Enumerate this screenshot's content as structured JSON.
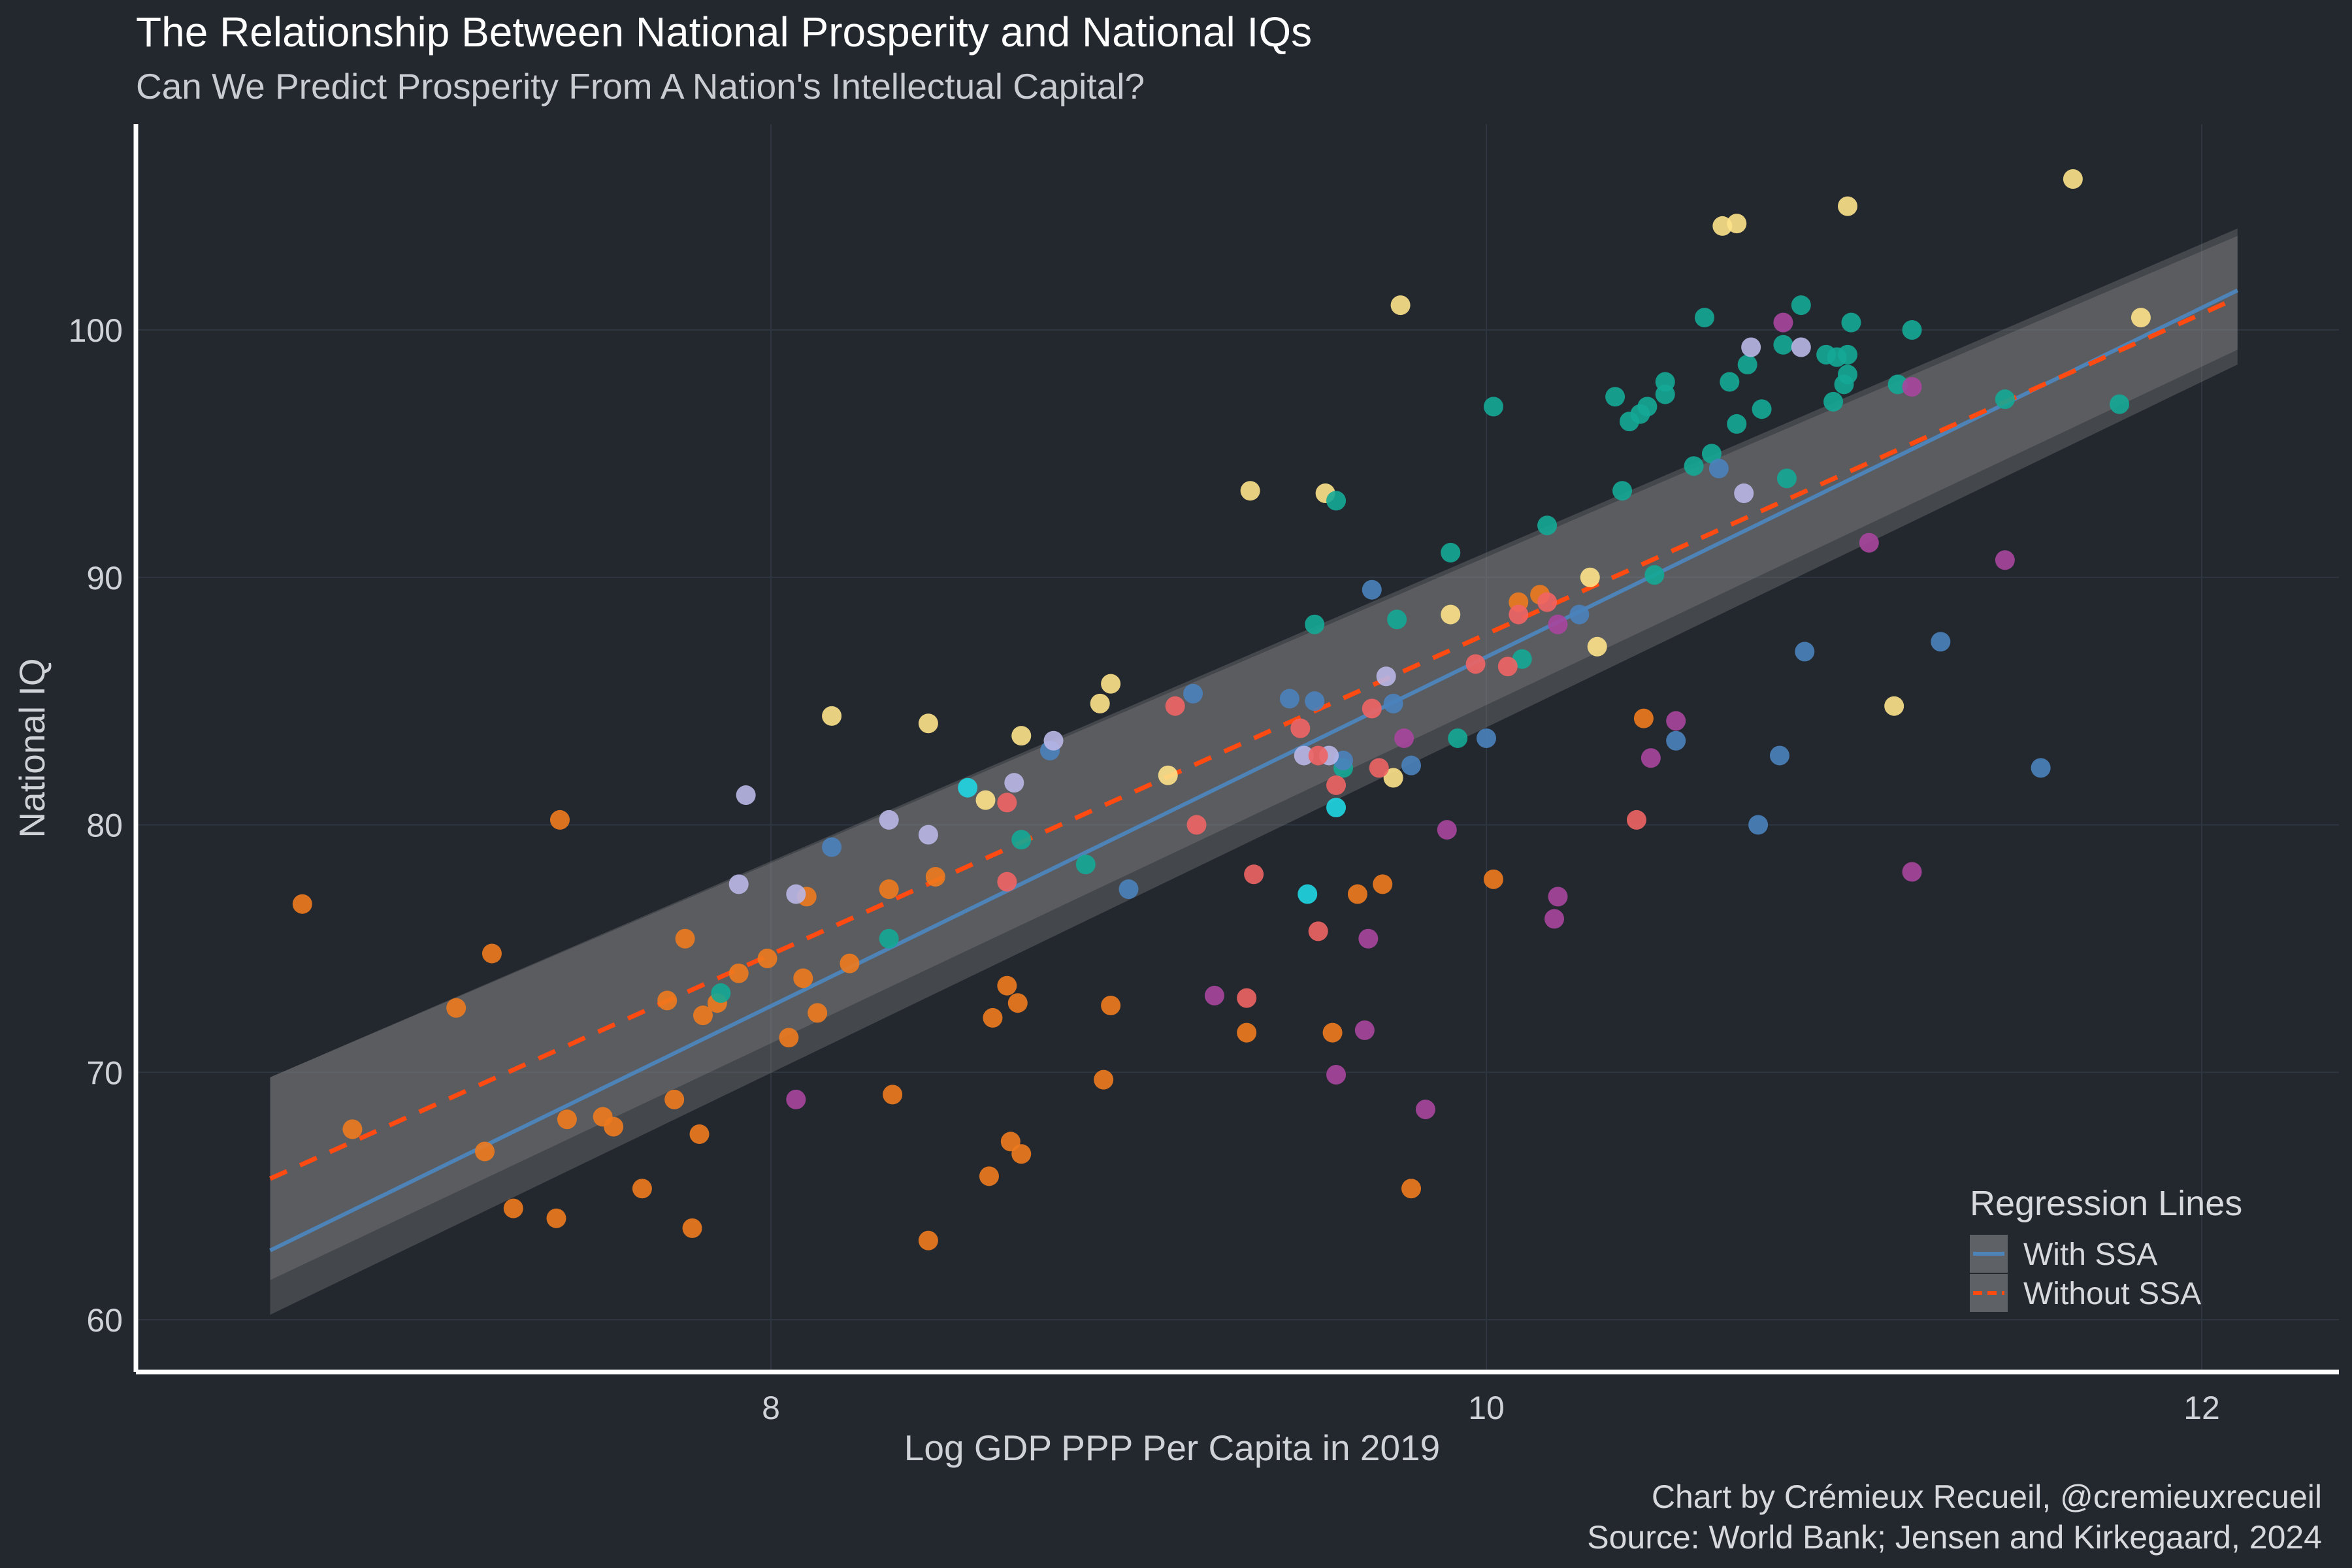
{
  "header": {
    "title": "The Relationship Between National Prosperity and National IQs",
    "subtitle": "Can We Predict Prosperity From A Nation's Intellectual Capital?"
  },
  "caption": {
    "line1": "Chart by Crémieux Recueil, @cremieuxrecueil",
    "line2": "Source: World Bank; Jensen and Kirkegaard, 2024"
  },
  "chart_data": {
    "type": "scatter",
    "title": "The Relationship Between National Prosperity and National IQs",
    "subtitle": "Can We Predict Prosperity From A Nation's Intellectual Capital?",
    "xlabel": "Log GDP PPP Per Capita in 2019",
    "ylabel": "National IQ",
    "xlim": [
      6.3,
      12.4
    ],
    "ylim": [
      58,
      108
    ],
    "xticks": [
      8,
      10,
      12
    ],
    "yticks": [
      60,
      70,
      80,
      90,
      100
    ],
    "grid": true,
    "legend": {
      "title": "Regression Lines",
      "position": "bottom-right",
      "entries": [
        {
          "label": "With SSA",
          "color": "#4e83b8",
          "style": "solid"
        },
        {
          "label": "Without SSA",
          "color": "#ff4a12",
          "style": "dashed"
        }
      ]
    },
    "regression_lines": [
      {
        "name": "With SSA",
        "color": "#4e83b8",
        "dash": false,
        "x": [
          6.6,
          12.1
        ],
        "y": [
          62.8,
          101.6
        ],
        "ci_lower": [
          60.2,
          98.6
        ],
        "ci_upper": [
          69.8,
          104.1
        ]
      },
      {
        "name": "Without SSA",
        "color": "#ff4a12",
        "dash": true,
        "x": [
          6.6,
          12.1
        ],
        "y": [
          65.7,
          101.3
        ],
        "ci_lower": [
          61.6,
          99.2
        ],
        "ci_upper": [
          69.8,
          103.8
        ]
      }
    ],
    "colors": {
      "orange": "#ee7a1e",
      "yellow": "#fde28a",
      "teal": "#14a896",
      "purple": "#a9459e",
      "blue": "#4a82bd",
      "lavender": "#b9b7e7",
      "red": "#ef6464",
      "cyan": "#1fd6e3"
    },
    "points": [
      {
        "x": 6.69,
        "y": 76.8,
        "c": "orange"
      },
      {
        "x": 6.83,
        "y": 67.7,
        "c": "orange"
      },
      {
        "x": 7.12,
        "y": 72.6,
        "c": "orange"
      },
      {
        "x": 7.22,
        "y": 74.8,
        "c": "orange"
      },
      {
        "x": 7.2,
        "y": 66.8,
        "c": "orange"
      },
      {
        "x": 7.28,
        "y": 64.5,
        "c": "orange"
      },
      {
        "x": 7.41,
        "y": 80.2,
        "c": "orange"
      },
      {
        "x": 7.4,
        "y": 64.1,
        "c": "orange"
      },
      {
        "x": 7.43,
        "y": 68.1,
        "c": "orange"
      },
      {
        "x": 7.53,
        "y": 68.2,
        "c": "orange"
      },
      {
        "x": 7.56,
        "y": 67.8,
        "c": "orange"
      },
      {
        "x": 7.64,
        "y": 65.3,
        "c": "orange"
      },
      {
        "x": 7.71,
        "y": 72.9,
        "c": "orange"
      },
      {
        "x": 7.73,
        "y": 68.9,
        "c": "orange"
      },
      {
        "x": 7.76,
        "y": 75.4,
        "c": "orange"
      },
      {
        "x": 7.78,
        "y": 63.7,
        "c": "orange"
      },
      {
        "x": 7.81,
        "y": 72.3,
        "c": "orange"
      },
      {
        "x": 7.8,
        "y": 67.5,
        "c": "orange"
      },
      {
        "x": 7.85,
        "y": 72.8,
        "c": "orange"
      },
      {
        "x": 7.91,
        "y": 74.0,
        "c": "orange"
      },
      {
        "x": 7.99,
        "y": 74.6,
        "c": "orange"
      },
      {
        "x": 8.05,
        "y": 71.4,
        "c": "orange"
      },
      {
        "x": 8.09,
        "y": 73.8,
        "c": "orange"
      },
      {
        "x": 8.1,
        "y": 77.1,
        "c": "orange"
      },
      {
        "x": 8.13,
        "y": 72.4,
        "c": "orange"
      },
      {
        "x": 8.22,
        "y": 74.4,
        "c": "orange"
      },
      {
        "x": 8.33,
        "y": 77.4,
        "c": "orange"
      },
      {
        "x": 8.34,
        "y": 69.1,
        "c": "orange"
      },
      {
        "x": 8.44,
        "y": 63.2,
        "c": "orange"
      },
      {
        "x": 8.46,
        "y": 77.9,
        "c": "orange"
      },
      {
        "x": 8.61,
        "y": 65.8,
        "c": "orange"
      },
      {
        "x": 8.62,
        "y": 72.2,
        "c": "orange"
      },
      {
        "x": 8.66,
        "y": 73.5,
        "c": "orange"
      },
      {
        "x": 8.67,
        "y": 67.2,
        "c": "orange"
      },
      {
        "x": 8.69,
        "y": 72.8,
        "c": "orange"
      },
      {
        "x": 8.7,
        "y": 66.7,
        "c": "orange"
      },
      {
        "x": 8.93,
        "y": 69.7,
        "c": "orange"
      },
      {
        "x": 8.95,
        "y": 72.7,
        "c": "orange"
      },
      {
        "x": 9.33,
        "y": 71.6,
        "c": "orange"
      },
      {
        "x": 9.57,
        "y": 71.6,
        "c": "orange"
      },
      {
        "x": 9.64,
        "y": 77.2,
        "c": "orange"
      },
      {
        "x": 9.71,
        "y": 77.6,
        "c": "orange"
      },
      {
        "x": 9.79,
        "y": 65.3,
        "c": "orange"
      },
      {
        "x": 10.02,
        "y": 77.8,
        "c": "orange"
      },
      {
        "x": 10.09,
        "y": 89.0,
        "c": "orange"
      },
      {
        "x": 10.15,
        "y": 89.3,
        "c": "orange"
      },
      {
        "x": 10.44,
        "y": 84.3,
        "c": "orange"
      },
      {
        "x": 8.17,
        "y": 84.4,
        "c": "yellow"
      },
      {
        "x": 8.44,
        "y": 84.1,
        "c": "yellow"
      },
      {
        "x": 8.6,
        "y": 81.0,
        "c": "yellow"
      },
      {
        "x": 8.7,
        "y": 83.6,
        "c": "yellow"
      },
      {
        "x": 8.92,
        "y": 84.9,
        "c": "yellow"
      },
      {
        "x": 8.95,
        "y": 85.7,
        "c": "yellow"
      },
      {
        "x": 9.11,
        "y": 82.0,
        "c": "yellow"
      },
      {
        "x": 9.34,
        "y": 93.5,
        "c": "yellow"
      },
      {
        "x": 9.55,
        "y": 93.4,
        "c": "yellow"
      },
      {
        "x": 9.74,
        "y": 81.9,
        "c": "yellow"
      },
      {
        "x": 9.76,
        "y": 101.0,
        "c": "yellow"
      },
      {
        "x": 9.9,
        "y": 88.5,
        "c": "yellow"
      },
      {
        "x": 10.29,
        "y": 90.0,
        "c": "yellow"
      },
      {
        "x": 10.31,
        "y": 87.2,
        "c": "yellow"
      },
      {
        "x": 10.66,
        "y": 104.2,
        "c": "yellow"
      },
      {
        "x": 10.7,
        "y": 104.3,
        "c": "yellow"
      },
      {
        "x": 11.01,
        "y": 105.0,
        "c": "yellow"
      },
      {
        "x": 11.14,
        "y": 84.8,
        "c": "yellow"
      },
      {
        "x": 11.64,
        "y": 106.1,
        "c": "yellow"
      },
      {
        "x": 11.83,
        "y": 100.5,
        "c": "yellow"
      },
      {
        "x": 7.86,
        "y": 73.2,
        "c": "teal"
      },
      {
        "x": 8.33,
        "y": 75.4,
        "c": "teal"
      },
      {
        "x": 8.7,
        "y": 79.4,
        "c": "teal"
      },
      {
        "x": 8.88,
        "y": 78.4,
        "c": "teal"
      },
      {
        "x": 9.52,
        "y": 88.1,
        "c": "teal"
      },
      {
        "x": 9.58,
        "y": 93.1,
        "c": "teal"
      },
      {
        "x": 9.6,
        "y": 82.3,
        "c": "teal"
      },
      {
        "x": 9.75,
        "y": 88.3,
        "c": "teal"
      },
      {
        "x": 9.9,
        "y": 91.0,
        "c": "teal"
      },
      {
        "x": 9.92,
        "y": 83.5,
        "c": "teal"
      },
      {
        "x": 10.02,
        "y": 96.9,
        "c": "teal"
      },
      {
        "x": 10.1,
        "y": 86.7,
        "c": "teal"
      },
      {
        "x": 10.17,
        "y": 92.1,
        "c": "teal"
      },
      {
        "x": 10.36,
        "y": 97.3,
        "c": "teal"
      },
      {
        "x": 10.38,
        "y": 93.5,
        "c": "teal"
      },
      {
        "x": 10.4,
        "y": 96.3,
        "c": "teal"
      },
      {
        "x": 10.43,
        "y": 96.6,
        "c": "teal"
      },
      {
        "x": 10.45,
        "y": 96.9,
        "c": "teal"
      },
      {
        "x": 10.47,
        "y": 90.1,
        "c": "teal"
      },
      {
        "x": 10.5,
        "y": 97.4,
        "c": "teal"
      },
      {
        "x": 10.5,
        "y": 97.9,
        "c": "teal"
      },
      {
        "x": 10.58,
        "y": 94.5,
        "c": "teal"
      },
      {
        "x": 10.61,
        "y": 100.5,
        "c": "teal"
      },
      {
        "x": 10.63,
        "y": 95.0,
        "c": "teal"
      },
      {
        "x": 10.68,
        "y": 97.9,
        "c": "teal"
      },
      {
        "x": 10.7,
        "y": 96.2,
        "c": "teal"
      },
      {
        "x": 10.73,
        "y": 98.6,
        "c": "teal"
      },
      {
        "x": 10.77,
        "y": 96.8,
        "c": "teal"
      },
      {
        "x": 10.83,
        "y": 99.4,
        "c": "teal"
      },
      {
        "x": 10.84,
        "y": 94.0,
        "c": "teal"
      },
      {
        "x": 10.88,
        "y": 101.0,
        "c": "teal"
      },
      {
        "x": 10.95,
        "y": 99.0,
        "c": "teal"
      },
      {
        "x": 10.97,
        "y": 97.1,
        "c": "teal"
      },
      {
        "x": 10.98,
        "y": 98.9,
        "c": "teal"
      },
      {
        "x": 11.0,
        "y": 97.8,
        "c": "teal"
      },
      {
        "x": 11.01,
        "y": 98.2,
        "c": "teal"
      },
      {
        "x": 11.02,
        "y": 100.3,
        "c": "teal"
      },
      {
        "x": 11.01,
        "y": 99.0,
        "c": "teal"
      },
      {
        "x": 11.15,
        "y": 97.8,
        "c": "teal"
      },
      {
        "x": 11.19,
        "y": 100.0,
        "c": "teal"
      },
      {
        "x": 11.45,
        "y": 97.2,
        "c": "teal"
      },
      {
        "x": 11.77,
        "y": 97.0,
        "c": "teal"
      },
      {
        "x": 8.07,
        "y": 68.9,
        "c": "purple"
      },
      {
        "x": 9.24,
        "y": 73.1,
        "c": "purple"
      },
      {
        "x": 9.58,
        "y": 69.9,
        "c": "purple"
      },
      {
        "x": 9.66,
        "y": 71.7,
        "c": "purple"
      },
      {
        "x": 9.67,
        "y": 75.4,
        "c": "purple"
      },
      {
        "x": 9.77,
        "y": 83.5,
        "c": "purple"
      },
      {
        "x": 9.83,
        "y": 68.5,
        "c": "purple"
      },
      {
        "x": 9.89,
        "y": 79.8,
        "c": "purple"
      },
      {
        "x": 10.19,
        "y": 76.2,
        "c": "purple"
      },
      {
        "x": 10.2,
        "y": 77.1,
        "c": "purple"
      },
      {
        "x": 10.2,
        "y": 88.1,
        "c": "purple"
      },
      {
        "x": 10.46,
        "y": 82.7,
        "c": "purple"
      },
      {
        "x": 10.53,
        "y": 84.2,
        "c": "purple"
      },
      {
        "x": 10.83,
        "y": 100.3,
        "c": "purple"
      },
      {
        "x": 11.07,
        "y": 91.4,
        "c": "purple"
      },
      {
        "x": 11.19,
        "y": 97.7,
        "c": "purple"
      },
      {
        "x": 11.19,
        "y": 78.1,
        "c": "purple"
      },
      {
        "x": 11.45,
        "y": 90.7,
        "c": "purple"
      },
      {
        "x": 8.17,
        "y": 79.1,
        "c": "blue"
      },
      {
        "x": 8.78,
        "y": 83.0,
        "c": "blue"
      },
      {
        "x": 9.0,
        "y": 77.4,
        "c": "blue"
      },
      {
        "x": 9.18,
        "y": 85.3,
        "c": "blue"
      },
      {
        "x": 9.45,
        "y": 85.1,
        "c": "blue"
      },
      {
        "x": 9.52,
        "y": 85.0,
        "c": "blue"
      },
      {
        "x": 9.6,
        "y": 82.6,
        "c": "blue"
      },
      {
        "x": 9.68,
        "y": 89.5,
        "c": "blue"
      },
      {
        "x": 9.74,
        "y": 84.9,
        "c": "blue"
      },
      {
        "x": 9.79,
        "y": 82.4,
        "c": "blue"
      },
      {
        "x": 10.0,
        "y": 83.5,
        "c": "blue"
      },
      {
        "x": 10.26,
        "y": 88.5,
        "c": "blue"
      },
      {
        "x": 10.53,
        "y": 83.4,
        "c": "blue"
      },
      {
        "x": 10.65,
        "y": 94.4,
        "c": "blue"
      },
      {
        "x": 10.76,
        "y": 80.0,
        "c": "blue"
      },
      {
        "x": 10.82,
        "y": 82.8,
        "c": "blue"
      },
      {
        "x": 10.89,
        "y": 87.0,
        "c": "blue"
      },
      {
        "x": 11.27,
        "y": 87.4,
        "c": "blue"
      },
      {
        "x": 11.55,
        "y": 82.3,
        "c": "blue"
      },
      {
        "x": 7.91,
        "y": 77.6,
        "c": "lavender"
      },
      {
        "x": 7.93,
        "y": 81.2,
        "c": "lavender"
      },
      {
        "x": 8.07,
        "y": 77.2,
        "c": "lavender"
      },
      {
        "x": 8.33,
        "y": 80.2,
        "c": "lavender"
      },
      {
        "x": 8.44,
        "y": 79.6,
        "c": "lavender"
      },
      {
        "x": 8.68,
        "y": 81.7,
        "c": "lavender"
      },
      {
        "x": 8.79,
        "y": 83.4,
        "c": "lavender"
      },
      {
        "x": 9.49,
        "y": 82.8,
        "c": "lavender"
      },
      {
        "x": 9.56,
        "y": 82.8,
        "c": "lavender"
      },
      {
        "x": 9.72,
        "y": 86.0,
        "c": "lavender"
      },
      {
        "x": 10.72,
        "y": 93.4,
        "c": "lavender"
      },
      {
        "x": 10.74,
        "y": 99.3,
        "c": "lavender"
      },
      {
        "x": 10.88,
        "y": 99.3,
        "c": "lavender"
      },
      {
        "x": 8.66,
        "y": 77.7,
        "c": "red"
      },
      {
        "x": 8.66,
        "y": 80.9,
        "c": "red"
      },
      {
        "x": 9.13,
        "y": 84.8,
        "c": "red"
      },
      {
        "x": 9.19,
        "y": 80.0,
        "c": "red"
      },
      {
        "x": 9.33,
        "y": 73.0,
        "c": "red"
      },
      {
        "x": 9.35,
        "y": 78.0,
        "c": "red"
      },
      {
        "x": 9.48,
        "y": 83.9,
        "c": "red"
      },
      {
        "x": 9.53,
        "y": 82.8,
        "c": "red"
      },
      {
        "x": 9.53,
        "y": 75.7,
        "c": "red"
      },
      {
        "x": 9.58,
        "y": 81.6,
        "c": "red"
      },
      {
        "x": 9.68,
        "y": 84.7,
        "c": "red"
      },
      {
        "x": 9.7,
        "y": 82.3,
        "c": "red"
      },
      {
        "x": 9.97,
        "y": 86.5,
        "c": "red"
      },
      {
        "x": 10.06,
        "y": 86.4,
        "c": "red"
      },
      {
        "x": 10.09,
        "y": 88.5,
        "c": "red"
      },
      {
        "x": 10.17,
        "y": 89.0,
        "c": "red"
      },
      {
        "x": 10.42,
        "y": 80.2,
        "c": "red"
      },
      {
        "x": 8.55,
        "y": 81.5,
        "c": "cyan"
      },
      {
        "x": 9.5,
        "y": 77.2,
        "c": "cyan"
      },
      {
        "x": 9.58,
        "y": 80.7,
        "c": "cyan"
      }
    ]
  }
}
